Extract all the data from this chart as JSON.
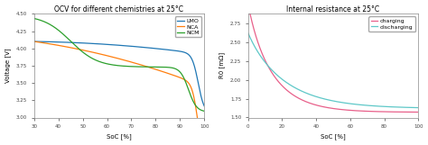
{
  "left_title": "OCV for different chemistries at 25°C",
  "left_xlabel": "SoC [%]",
  "left_ylabel": "Voltage [V]",
  "left_xlim": [
    30,
    100
  ],
  "left_ylim": [
    3.0,
    4.5
  ],
  "left_xticks": [
    30,
    40,
    50,
    60,
    70,
    80,
    90,
    100
  ],
  "left_yticks": [
    3.0,
    3.25,
    3.5,
    3.75,
    4.0,
    4.25,
    4.5
  ],
  "lmo_color": "#1f77b4",
  "nca_color": "#ff7f0e",
  "ncm_color": "#2ca02c",
  "right_title": "Internal resistance at 25°C",
  "right_xlabel": "SoC [%]",
  "right_ylabel": "R0 [mΩ]",
  "right_xlim": [
    0,
    100
  ],
  "right_ylim": [
    1.5,
    2.875
  ],
  "right_xticks": [
    0,
    20,
    40,
    60,
    80,
    100
  ],
  "right_yticks": [
    1.5,
    1.75,
    2.0,
    2.25,
    2.5,
    2.75
  ],
  "charging_color": "#e8608a",
  "discharging_color": "#5ec8c8",
  "background_color": "#ffffff"
}
